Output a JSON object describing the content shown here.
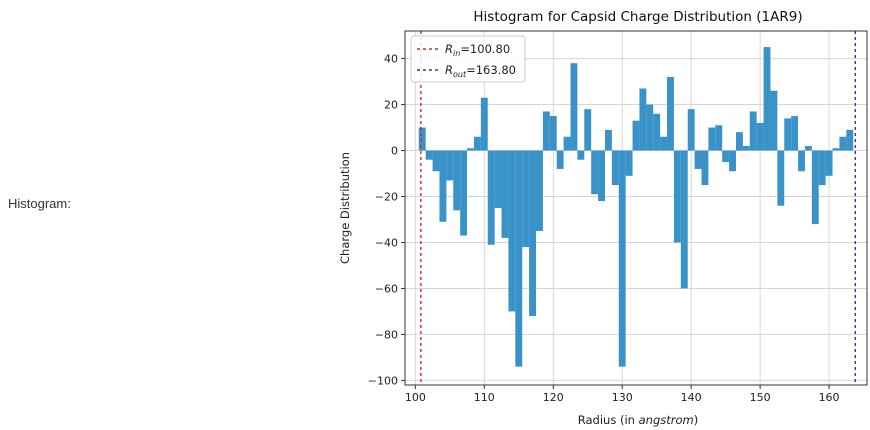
{
  "page": {
    "label": "Histogram:"
  },
  "chart_data": {
    "type": "bar",
    "title": "Histogram for Capsid Charge Distribution (1AR9)",
    "xlabel_prefix": "Radius (in ",
    "xlabel_italic": "angstrom",
    "xlabel_suffix": ")",
    "ylabel": "Charge Distribution",
    "xlim": [
      98.5,
      165.5
    ],
    "ylim": [
      -102,
      52
    ],
    "xticks": [
      100,
      110,
      120,
      130,
      140,
      150,
      160
    ],
    "yticks": [
      -100,
      -80,
      -60,
      -40,
      -20,
      0,
      20,
      40
    ],
    "grid": true,
    "legend_position": "upper-left",
    "bar_color": "#3a93c8",
    "bin_width": 1,
    "bins": [
      {
        "x": 101,
        "y": 10
      },
      {
        "x": 102,
        "y": -4
      },
      {
        "x": 103,
        "y": -9
      },
      {
        "x": 104,
        "y": -31
      },
      {
        "x": 105,
        "y": -13
      },
      {
        "x": 106,
        "y": -26
      },
      {
        "x": 107,
        "y": -37
      },
      {
        "x": 108,
        "y": 1
      },
      {
        "x": 109,
        "y": 6
      },
      {
        "x": 110,
        "y": 23
      },
      {
        "x": 111,
        "y": -41
      },
      {
        "x": 112,
        "y": -25
      },
      {
        "x": 113,
        "y": -38
      },
      {
        "x": 114,
        "y": -70
      },
      {
        "x": 115,
        "y": -94
      },
      {
        "x": 116,
        "y": -42
      },
      {
        "x": 117,
        "y": -72
      },
      {
        "x": 118,
        "y": -35
      },
      {
        "x": 119,
        "y": 17
      },
      {
        "x": 120,
        "y": 15
      },
      {
        "x": 121,
        "y": -8
      },
      {
        "x": 122,
        "y": 6
      },
      {
        "x": 123,
        "y": 38
      },
      {
        "x": 124,
        "y": -4
      },
      {
        "x": 125,
        "y": 18
      },
      {
        "x": 126,
        "y": -19
      },
      {
        "x": 127,
        "y": -22
      },
      {
        "x": 128,
        "y": 9
      },
      {
        "x": 129,
        "y": -15
      },
      {
        "x": 130,
        "y": -94
      },
      {
        "x": 131,
        "y": -11
      },
      {
        "x": 132,
        "y": 13
      },
      {
        "x": 133,
        "y": 27
      },
      {
        "x": 134,
        "y": 20
      },
      {
        "x": 135,
        "y": 16
      },
      {
        "x": 136,
        "y": 6
      },
      {
        "x": 137,
        "y": 32
      },
      {
        "x": 138,
        "y": -40
      },
      {
        "x": 139,
        "y": -60
      },
      {
        "x": 140,
        "y": 18
      },
      {
        "x": 141,
        "y": -8
      },
      {
        "x": 142,
        "y": -15
      },
      {
        "x": 143,
        "y": 10
      },
      {
        "x": 144,
        "y": 11
      },
      {
        "x": 145,
        "y": -5
      },
      {
        "x": 146,
        "y": -9
      },
      {
        "x": 147,
        "y": 8
      },
      {
        "x": 148,
        "y": 2
      },
      {
        "x": 149,
        "y": 17
      },
      {
        "x": 150,
        "y": 12
      },
      {
        "x": 151,
        "y": 45
      },
      {
        "x": 152,
        "y": 26
      },
      {
        "x": 153,
        "y": -24
      },
      {
        "x": 154,
        "y": 14
      },
      {
        "x": 155,
        "y": 15
      },
      {
        "x": 156,
        "y": -9
      },
      {
        "x": 157,
        "y": 2
      },
      {
        "x": 158,
        "y": -32
      },
      {
        "x": 159,
        "y": -15
      },
      {
        "x": 160,
        "y": -11
      },
      {
        "x": 161,
        "y": 1
      },
      {
        "x": 162,
        "y": 6
      },
      {
        "x": 163,
        "y": 9
      }
    ],
    "reference_lines": [
      {
        "label_symbol": "R",
        "label_sub": "in",
        "label_value": "=100.80",
        "x": 100.8,
        "color": "#d62728"
      },
      {
        "label_symbol": "R",
        "label_sub": "out",
        "label_value": "=163.80",
        "x": 163.8,
        "color": "#4b2ca0"
      }
    ]
  }
}
